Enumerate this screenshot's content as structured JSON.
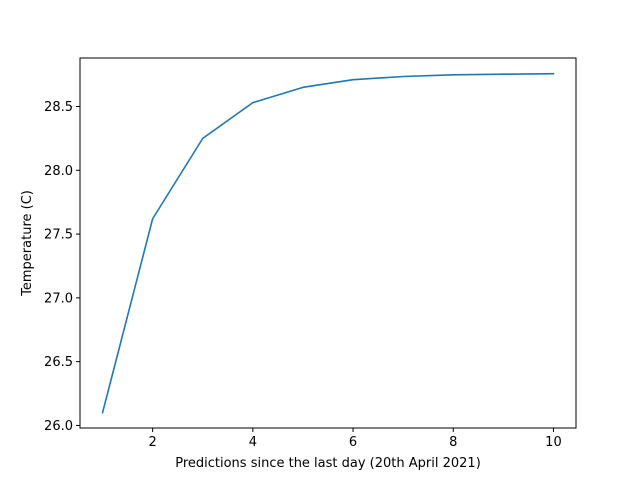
{
  "chart_data": {
    "type": "line",
    "title": "",
    "xlabel": "Predictions since the last day (20th April 2021)",
    "ylabel": "Temperature (C)",
    "xlim": [
      0.55,
      10.45
    ],
    "ylim": [
      25.98,
      28.88
    ],
    "xticks": [
      2,
      4,
      6,
      8,
      10
    ],
    "yticks": [
      26.0,
      26.5,
      27.0,
      27.5,
      28.0,
      28.5
    ],
    "xtick_labels": [
      "2",
      "4",
      "6",
      "8",
      "10"
    ],
    "ytick_labels": [
      "26.0",
      "26.5",
      "27.0",
      "27.5",
      "28.0",
      "28.5"
    ],
    "grid": false,
    "legend": false,
    "line_color": "#1f77b4",
    "series": [
      {
        "x": [
          1,
          2,
          3,
          4,
          5,
          6,
          7,
          8,
          9,
          10
        ],
        "values": [
          26.1,
          27.62,
          28.25,
          28.53,
          28.65,
          28.71,
          28.735,
          28.748,
          28.753,
          28.757
        ]
      }
    ]
  }
}
